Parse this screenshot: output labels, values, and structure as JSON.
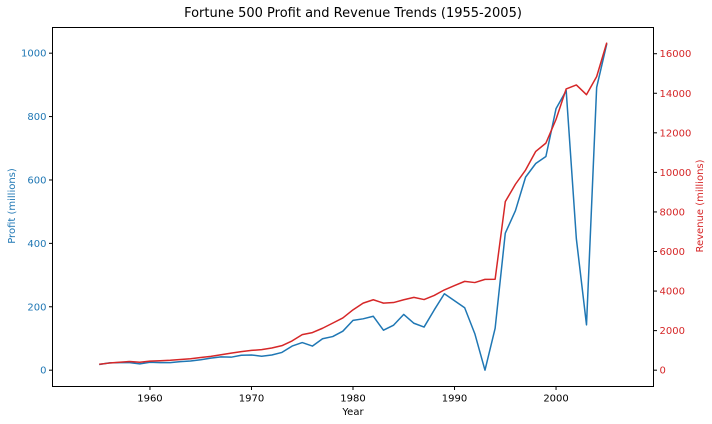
{
  "chart_data": {
    "type": "line",
    "title": "Fortune 500 Profit and Revenue Trends (1955-2005)",
    "xlabel": "Year",
    "ylabel_left": "Profit (millions)",
    "ylabel_right": "Revenue (millions)",
    "xlim": [
      1950.4,
      2009.6
    ],
    "ylim_left": [
      -51.5,
      1081
    ],
    "ylim_right": [
      -825,
      17325
    ],
    "x_ticks": [
      1960,
      1970,
      1980,
      1990,
      2000
    ],
    "y_ticks_left": [
      0,
      200,
      400,
      600,
      800,
      1000
    ],
    "y_ticks_right": [
      0,
      2000,
      4000,
      6000,
      8000,
      10000,
      12000,
      14000,
      16000
    ],
    "grid": false,
    "legend": "none",
    "colors": {
      "profit": "#1f77b4",
      "revenue": "#d62728",
      "frame": "#000000"
    },
    "x": [
      1955,
      1956,
      1957,
      1958,
      1959,
      1960,
      1961,
      1962,
      1963,
      1964,
      1965,
      1966,
      1967,
      1968,
      1969,
      1970,
      1971,
      1972,
      1973,
      1974,
      1975,
      1976,
      1977,
      1978,
      1979,
      1980,
      1981,
      1982,
      1983,
      1984,
      1985,
      1986,
      1987,
      1988,
      1989,
      1990,
      1991,
      1992,
      1993,
      1994,
      1995,
      1996,
      1997,
      1998,
      1999,
      2000,
      2001,
      2002,
      2003,
      2004,
      2005
    ],
    "series": [
      {
        "axis": "left",
        "color": "#1f77b4",
        "values": [
          18,
          23,
          24,
          24,
          20,
          25,
          24,
          24,
          27,
          29,
          33,
          38,
          42,
          41,
          47,
          48,
          44,
          48,
          56,
          76,
          87,
          76,
          99,
          106,
          123,
          157,
          162,
          170,
          126,
          142,
          176,
          148,
          136,
          190,
          241,
          219,
          197,
          115,
          0,
          132,
          432,
          503,
          609,
          652,
          674,
          825,
          882,
          415,
          143,
          892,
          1030
        ]
      },
      {
        "axis": "right",
        "color": "#d62728",
        "values": [
          300,
          360,
          400,
          440,
          400,
          460,
          480,
          500,
          540,
          580,
          640,
          700,
          780,
          860,
          940,
          1000,
          1040,
          1120,
          1240,
          1480,
          1800,
          1900,
          2120,
          2380,
          2640,
          3050,
          3390,
          3560,
          3390,
          3420,
          3560,
          3680,
          3570,
          3780,
          4060,
          4280,
          4490,
          4430,
          4590,
          4600,
          8520,
          9400,
          10120,
          11060,
          11480,
          12680,
          14220,
          14420,
          13930,
          14840,
          16560
        ]
      }
    ]
  }
}
